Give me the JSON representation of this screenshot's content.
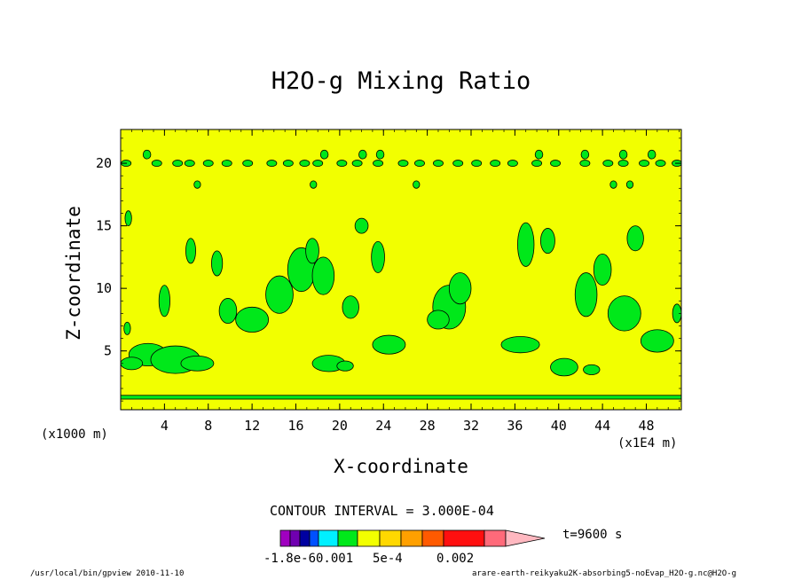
{
  "chart_data": {
    "type": "heatmap",
    "title": "H2O-g Mixing Ratio",
    "xlabel": "X-coordinate",
    "ylabel": "Z-coordinate",
    "x_unit": "(x1E4 m)",
    "y_unit": "(x1000 m)",
    "xlim": [
      0,
      51.2
    ],
    "ylim": [
      0.3,
      22.7
    ],
    "x_ticks": [
      4,
      8,
      12,
      16,
      20,
      24,
      28,
      32,
      36,
      40,
      44,
      48
    ],
    "y_ticks": [
      5,
      10,
      15,
      20
    ],
    "contour_interval": "CONTOUR INTERVAL = 3.000E-04",
    "time_label": "t=9600 s",
    "background_level_color": "#f2ff00",
    "patch_level_color": "#00e81a",
    "colorbar_colors": [
      "#a000c0",
      "#7000b0",
      "#0000a0",
      "#0050ff",
      "#00f0ff",
      "#00e81a",
      "#f2ff00",
      "#ffd800",
      "#ffa000",
      "#ff5a00",
      "#ff0f0f",
      "#ff6a7a",
      "#ffb8c0"
    ],
    "colorbar_labels": [
      "-1.8e-6",
      "0.001",
      "5e-4",
      "0.002"
    ],
    "patches": [
      {
        "x": 2.5,
        "z": 4.7,
        "w": 3.5,
        "h": 1.8
      },
      {
        "x": 5.0,
        "z": 4.3,
        "w": 4.5,
        "h": 2.2
      },
      {
        "x": 7.0,
        "z": 4.0,
        "w": 3.0,
        "h": 1.2
      },
      {
        "x": 1.0,
        "z": 4.0,
        "w": 2.0,
        "h": 1.0
      },
      {
        "x": 4.0,
        "z": 9.0,
        "w": 1.0,
        "h": 2.5
      },
      {
        "x": 8.8,
        "z": 12.0,
        "w": 1.0,
        "h": 2.0
      },
      {
        "x": 6.4,
        "z": 13.0,
        "w": 0.9,
        "h": 2.0
      },
      {
        "x": 9.8,
        "z": 8.2,
        "w": 1.6,
        "h": 2.0
      },
      {
        "x": 12.0,
        "z": 7.5,
        "w": 3.0,
        "h": 2.0
      },
      {
        "x": 14.5,
        "z": 9.5,
        "w": 2.5,
        "h": 3.0
      },
      {
        "x": 16.5,
        "z": 11.5,
        "w": 2.5,
        "h": 3.5
      },
      {
        "x": 18.5,
        "z": 11.0,
        "w": 2.0,
        "h": 3.0
      },
      {
        "x": 17.5,
        "z": 13.0,
        "w": 1.2,
        "h": 2.0
      },
      {
        "x": 19.0,
        "z": 4.0,
        "w": 3.0,
        "h": 1.3
      },
      {
        "x": 20.5,
        "z": 3.8,
        "w": 1.5,
        "h": 0.8
      },
      {
        "x": 21.0,
        "z": 8.5,
        "w": 1.5,
        "h": 1.8
      },
      {
        "x": 22.0,
        "z": 15.0,
        "w": 1.2,
        "h": 1.2
      },
      {
        "x": 24.5,
        "z": 5.5,
        "w": 3.0,
        "h": 1.5
      },
      {
        "x": 23.5,
        "z": 12.5,
        "w": 1.2,
        "h": 2.5
      },
      {
        "x": 30.0,
        "z": 8.5,
        "w": 3.0,
        "h": 3.5
      },
      {
        "x": 31.0,
        "z": 10.0,
        "w": 2.0,
        "h": 2.5
      },
      {
        "x": 29.0,
        "z": 7.5,
        "w": 2.0,
        "h": 1.5
      },
      {
        "x": 36.5,
        "z": 5.5,
        "w": 3.5,
        "h": 1.3
      },
      {
        "x": 37.0,
        "z": 13.5,
        "w": 1.5,
        "h": 3.5
      },
      {
        "x": 39.0,
        "z": 13.8,
        "w": 1.3,
        "h": 2.0
      },
      {
        "x": 40.5,
        "z": 3.7,
        "w": 2.5,
        "h": 1.4
      },
      {
        "x": 43.0,
        "z": 3.5,
        "w": 1.5,
        "h": 0.8
      },
      {
        "x": 42.5,
        "z": 9.5,
        "w": 2.0,
        "h": 3.5
      },
      {
        "x": 44.0,
        "z": 11.5,
        "w": 1.6,
        "h": 2.5
      },
      {
        "x": 46.0,
        "z": 8.0,
        "w": 3.0,
        "h": 2.8
      },
      {
        "x": 49.0,
        "z": 5.8,
        "w": 3.0,
        "h": 1.8
      },
      {
        "x": 47.0,
        "z": 14.0,
        "w": 1.5,
        "h": 2.0
      },
      {
        "x": 50.8,
        "z": 8.0,
        "w": 0.8,
        "h": 1.5
      },
      {
        "x": 0.7,
        "z": 15.6,
        "w": 0.6,
        "h": 1.2
      },
      {
        "x": 0.6,
        "z": 6.8,
        "w": 0.6,
        "h": 1.0
      }
    ]
  },
  "footer": {
    "left": "/usr/local/bin/gpview  2010-11-10",
    "right": "arare-earth-reikyaku2K-absorbing5-noEvap_H2O-g.nc@H2O-g"
  }
}
